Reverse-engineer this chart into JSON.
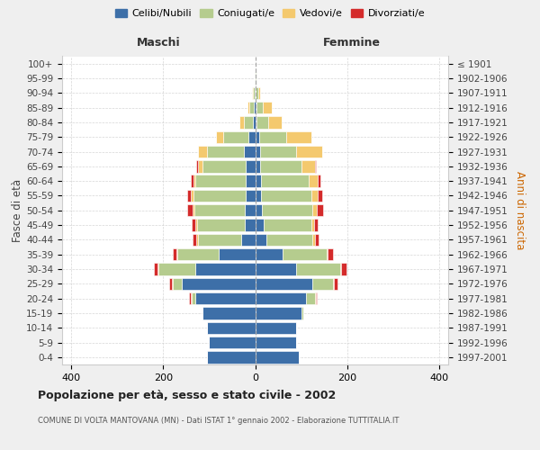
{
  "age_groups": [
    "0-4",
    "5-9",
    "10-14",
    "15-19",
    "20-24",
    "25-29",
    "30-34",
    "35-39",
    "40-44",
    "45-49",
    "50-54",
    "55-59",
    "60-64",
    "65-69",
    "70-74",
    "75-79",
    "80-84",
    "85-89",
    "90-94",
    "95-99",
    "100+"
  ],
  "birth_years": [
    "1997-2001",
    "1992-1996",
    "1987-1991",
    "1982-1986",
    "1977-1981",
    "1972-1976",
    "1967-1971",
    "1962-1966",
    "1957-1961",
    "1952-1956",
    "1947-1951",
    "1942-1946",
    "1937-1941",
    "1932-1936",
    "1927-1931",
    "1922-1926",
    "1917-1921",
    "1912-1916",
    "1907-1911",
    "1902-1906",
    "≤ 1901"
  ],
  "males": {
    "celibe": [
      105,
      100,
      105,
      115,
      130,
      160,
      130,
      80,
      30,
      22,
      22,
      20,
      20,
      20,
      25,
      15,
      5,
      2,
      1,
      0,
      0
    ],
    "coniugato": [
      0,
      0,
      0,
      0,
      8,
      20,
      80,
      90,
      95,
      105,
      110,
      115,
      110,
      95,
      80,
      55,
      20,
      10,
      4,
      1,
      0
    ],
    "vedovo": [
      0,
      0,
      0,
      0,
      2,
      2,
      2,
      2,
      3,
      3,
      5,
      5,
      5,
      10,
      20,
      15,
      10,
      5,
      2,
      0,
      0
    ],
    "divorziato": [
      0,
      0,
      0,
      0,
      3,
      5,
      8,
      8,
      8,
      8,
      10,
      8,
      5,
      3,
      0,
      0,
      0,
      0,
      0,
      0,
      0
    ]
  },
  "females": {
    "nubile": [
      95,
      90,
      90,
      100,
      110,
      125,
      90,
      60,
      25,
      18,
      15,
      12,
      12,
      10,
      10,
      8,
      3,
      2,
      1,
      1,
      0
    ],
    "coniugata": [
      0,
      0,
      0,
      5,
      20,
      45,
      95,
      95,
      100,
      105,
      110,
      110,
      105,
      90,
      80,
      60,
      25,
      15,
      5,
      1,
      0
    ],
    "vedova": [
      0,
      0,
      0,
      0,
      2,
      2,
      2,
      3,
      5,
      5,
      10,
      15,
      20,
      30,
      55,
      55,
      30,
      20,
      5,
      0,
      0
    ],
    "divorziata": [
      0,
      0,
      0,
      0,
      3,
      8,
      12,
      12,
      8,
      8,
      12,
      8,
      5,
      3,
      0,
      0,
      0,
      0,
      0,
      0,
      0
    ]
  },
  "colors": {
    "celibe": "#3d6fa8",
    "coniugato": "#b5cc8e",
    "vedovo": "#f4c96e",
    "divorziato": "#d42b2b"
  },
  "legend_labels": [
    "Celibi/Nubili",
    "Coniugati/e",
    "Vedovi/e",
    "Divorziati/e"
  ],
  "title": "Popolazione per età, sesso e stato civile - 2002",
  "subtitle": "COMUNE DI VOLTA MANTOVANA (MN) - Dati ISTAT 1° gennaio 2002 - Elaborazione TUTTITALIA.IT",
  "maschi": "Maschi",
  "femmine": "Femmine",
  "ylabel_left": "Fasce di età",
  "ylabel_right": "Anni di nascita",
  "xlim": 420,
  "bg_color": "#efefef",
  "plot_bg": "#ffffff"
}
